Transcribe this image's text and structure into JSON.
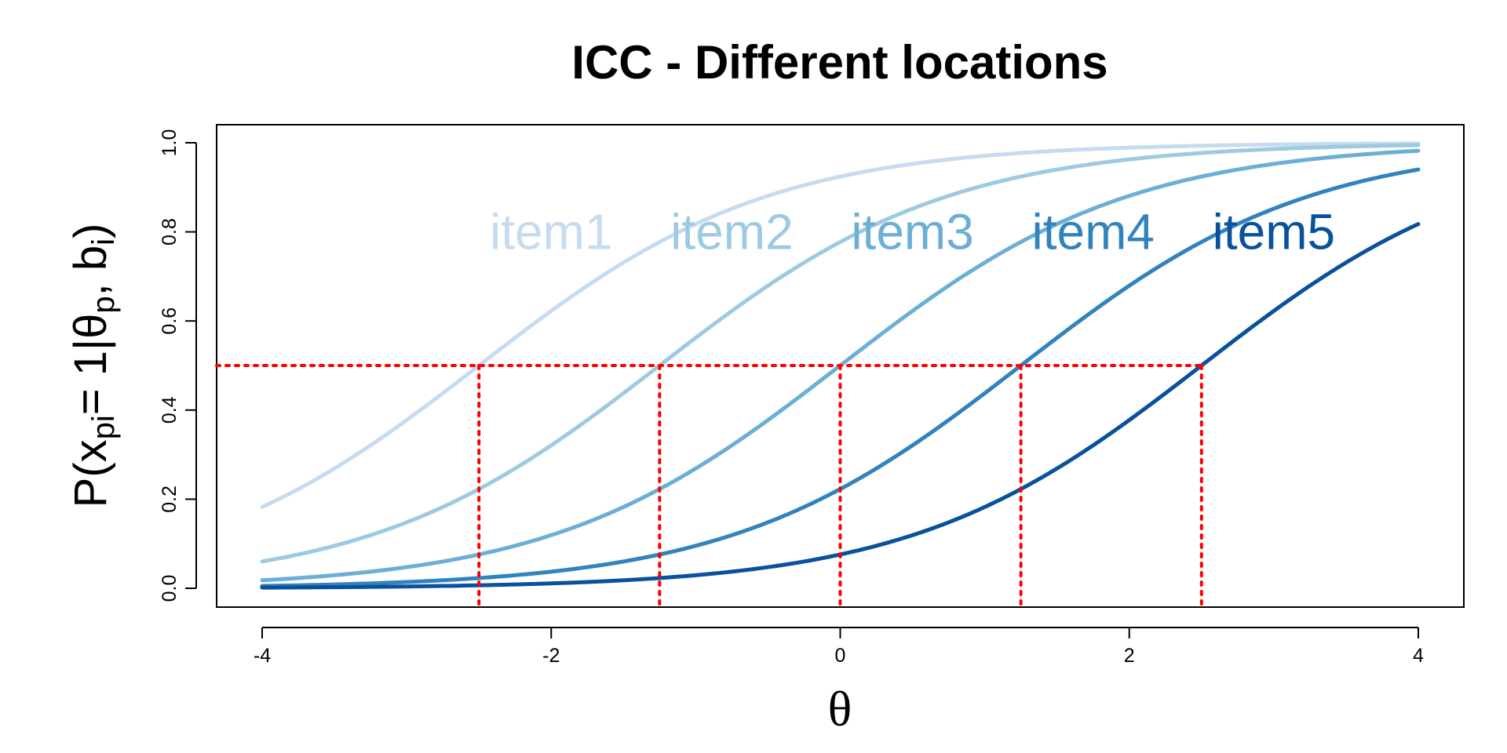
{
  "chart_data": {
    "type": "line",
    "title": "ICC - Different locations",
    "xlabel": "θ",
    "ylabel": {
      "prefix": "P(x",
      "sub1": "pi",
      "mid1": "= 1|θ",
      "sub2": "p",
      "mid2": ", b",
      "sub3": "i",
      "suffix": ")"
    },
    "xlim": [
      -4,
      4
    ],
    "ylim": [
      0,
      1
    ],
    "x_ticks": [
      -4,
      -2,
      0,
      2,
      4
    ],
    "x_tick_labels": [
      "-4",
      "-2",
      "0",
      "2",
      "4"
    ],
    "y_ticks": [
      0,
      0.2,
      0.4,
      0.6,
      0.8,
      1.0
    ],
    "y_tick_labels": [
      "0.0",
      "0.2",
      "0.4",
      "0.6",
      "0.8",
      "1.0"
    ],
    "grid": false,
    "model": "1PL logistic, P = 1 / (1 + exp(-(θ - b)))",
    "series": [
      {
        "name": "item1",
        "b": -2.5,
        "color": "#c6dbef",
        "label_x": -2.0,
        "label_y": 0.8
      },
      {
        "name": "item2",
        "b": -1.25,
        "color": "#9ecae1",
        "label_x": -0.75,
        "label_y": 0.8
      },
      {
        "name": "item3",
        "b": 0,
        "color": "#6baed6",
        "label_x": 0.5,
        "label_y": 0.8
      },
      {
        "name": "item4",
        "b": 1.25,
        "color": "#3182bd",
        "label_x": 1.75,
        "label_y": 0.8
      },
      {
        "name": "item5",
        "b": 2.5,
        "color": "#08519c",
        "label_x": 3.0,
        "label_y": 0.8
      }
    ],
    "reference_lines": {
      "color": "#ff0000",
      "style": "dotted",
      "horizontal_y": 0.5,
      "vertical_x": [
        -2.5,
        -1.25,
        0,
        1.25,
        2.5
      ]
    }
  }
}
